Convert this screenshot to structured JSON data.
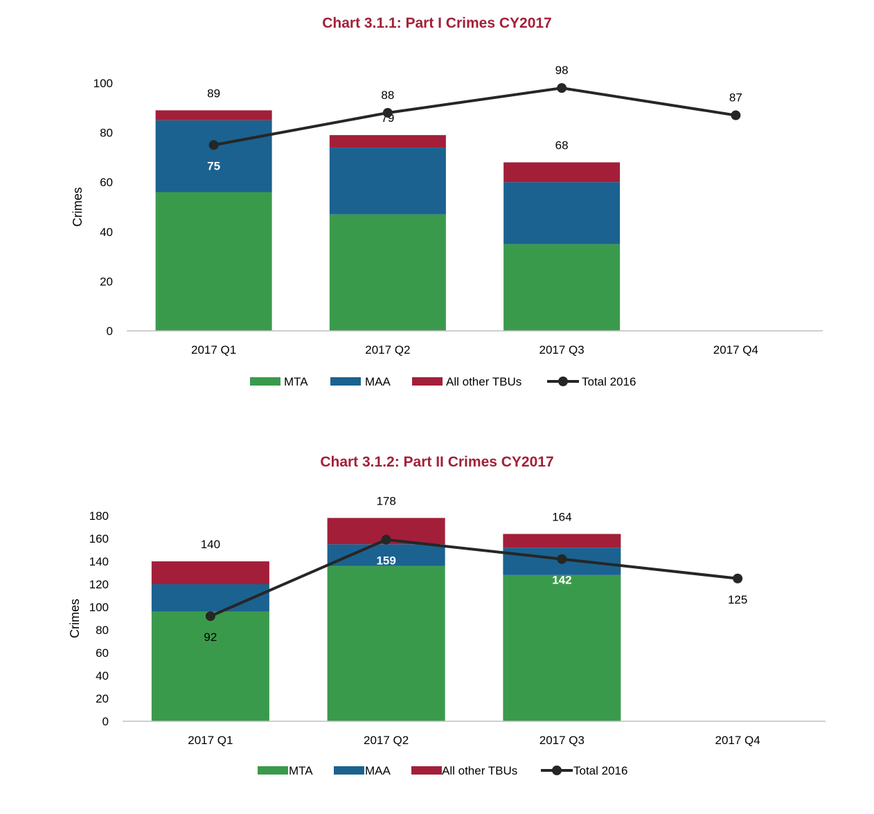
{
  "colors": {
    "mta": "#3a9a4c",
    "maa": "#1b6290",
    "other": "#a31f39",
    "line": "#262626",
    "title": "#a31f39",
    "axis": "#bfbfbf",
    "text": "#000000"
  },
  "chart_data": [
    {
      "type": "bar",
      "stacked": true,
      "title": "Chart 3.1.1: Part I Crimes CY2017",
      "xlabel": "",
      "ylabel": "Crimes",
      "ylim": [
        0,
        100
      ],
      "yticks": [
        0,
        20,
        40,
        60,
        80,
        100
      ],
      "categories": [
        "2017 Q1",
        "2017 Q2",
        "2017 Q3",
        "2017 Q4"
      ],
      "series": [
        {
          "name": "MTA",
          "kind": "bar",
          "color_key": "mta",
          "values": [
            56,
            47,
            35,
            null
          ]
        },
        {
          "name": "MAA",
          "kind": "bar",
          "color_key": "maa",
          "values": [
            29,
            27,
            25,
            null
          ]
        },
        {
          "name": "All other TBUs",
          "kind": "bar",
          "color_key": "other",
          "values": [
            4,
            5,
            8,
            null
          ]
        },
        {
          "name": "Total 2016",
          "kind": "line",
          "color_key": "line",
          "values": [
            75,
            88,
            98,
            87
          ]
        }
      ],
      "bar_total_labels": [
        "89",
        "79",
        "68",
        ""
      ],
      "line_labels": [
        {
          "text": "75",
          "position": "below",
          "color": "#ffffff"
        },
        {
          "text": "88",
          "position": "above",
          "color": "#000000"
        },
        {
          "text": "98",
          "position": "above",
          "color": "#000000"
        },
        {
          "text": "87",
          "position": "above",
          "color": "#000000"
        }
      ],
      "legend": "bottom",
      "grid": false
    },
    {
      "type": "bar",
      "stacked": true,
      "title": "Chart 3.1.2: Part II Crimes CY2017",
      "xlabel": "",
      "ylabel": "Crimes",
      "ylim": [
        0,
        180
      ],
      "yticks": [
        0,
        20,
        40,
        60,
        80,
        100,
        120,
        140,
        160,
        180
      ],
      "categories": [
        "2017 Q1",
        "2017 Q2",
        "2017 Q3",
        "2017 Q4"
      ],
      "series": [
        {
          "name": "MTA",
          "kind": "bar",
          "color_key": "mta",
          "values": [
            96,
            136,
            128,
            null
          ]
        },
        {
          "name": "MAA",
          "kind": "bar",
          "color_key": "maa",
          "values": [
            24,
            19,
            24,
            null
          ]
        },
        {
          "name": "All other TBUs",
          "kind": "bar",
          "color_key": "other",
          "values": [
            20,
            23,
            12,
            null
          ]
        },
        {
          "name": "Total 2016",
          "kind": "line",
          "color_key": "line",
          "values": [
            92,
            159,
            142,
            125
          ]
        }
      ],
      "bar_total_labels": [
        "140",
        "178",
        "164",
        ""
      ],
      "line_labels": [
        {
          "text": "92",
          "position": "below",
          "color": "#000000"
        },
        {
          "text": "159",
          "position": "below",
          "color": "#ffffff"
        },
        {
          "text": "142",
          "position": "below",
          "color": "#ffffff"
        },
        {
          "text": "125",
          "position": "below",
          "color": "#000000"
        }
      ],
      "legend": "bottom",
      "grid": false
    }
  ]
}
